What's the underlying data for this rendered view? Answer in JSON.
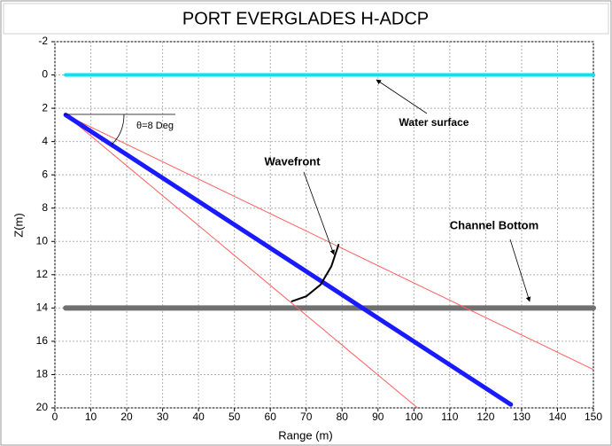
{
  "chart_data": {
    "type": "line",
    "title": "PORT EVERGLADES H-ADCP",
    "x_label": "Range (m)",
    "y_label": "Z(m)",
    "xlim": [
      0,
      150
    ],
    "xticks": [
      0,
      10,
      20,
      30,
      40,
      50,
      60,
      70,
      80,
      90,
      100,
      110,
      120,
      130,
      140,
      150
    ],
    "ylim": [
      -2,
      20
    ],
    "yticks": [
      -2,
      0,
      2,
      4,
      6,
      8,
      10,
      12,
      14,
      16,
      18,
      20
    ],
    "invert_y": true,
    "grid": true,
    "series": [
      {
        "color": "#00e5ee",
        "x": [
          3,
          150
        ],
        "values": [
          0,
          0
        ]
      },
      {
        "color": "#707070",
        "x": [
          3,
          150
        ],
        "values": [
          14,
          14
        ]
      },
      {
        "color": "#ff6060",
        "x": [
          3,
          150
        ],
        "values": [
          2.4,
          17.7
        ]
      },
      {
        "color": "#ff6060",
        "x": [
          3,
          101
        ],
        "values": [
          2.4,
          20
        ]
      },
      {
        "color": "#1a1aff",
        "x": [
          3,
          127
        ],
        "values": [
          2.4,
          19.8
        ]
      },
      {
        "color": "#000000",
        "x": [
          66,
          70,
          74,
          77,
          79
        ],
        "values": [
          13.6,
          13.3,
          12.6,
          11.5,
          10.2
        ]
      }
    ],
    "annotations": [
      "Water surface",
      "Wavefront",
      "Channel Bottom",
      "θ=8 Deg"
    ]
  }
}
